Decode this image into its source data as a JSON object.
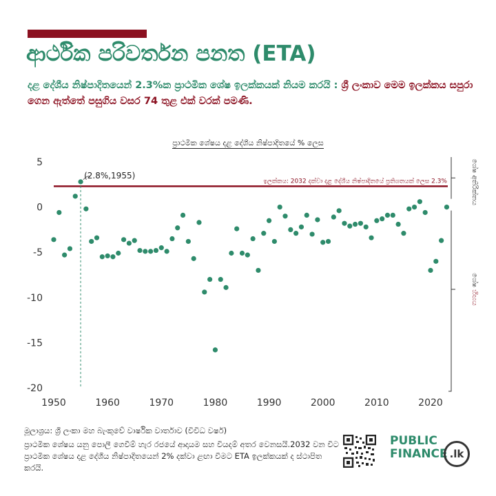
{
  "header": {
    "title": "ආර්ථික පරිවර්තන පනත (ETA)",
    "subtitle_green": "දළ දේශීය නිෂ්පාදිතයෙන් 2.3%ක ප්‍රාථමික ශේෂ ඉලක්කයක් නියම කරයි :",
    "subtitle_red": "ශ්‍රී ලංකාව මෙම ඉලක්කය සපුරා ගෙන ඇත්තේ පසුගිය වසර 74 තුළ එක් වරක් පමණි."
  },
  "colors": {
    "accent_red": "#8b1020",
    "accent_green": "#2e8b6b",
    "point": "#2e8b6b"
  },
  "chart_data": {
    "type": "scatter",
    "title": "ප්‍රාථමික ශේෂය දළ දේශීය නිෂ්පාදිතයේ % ලෙස",
    "xlim": [
      1949,
      2024
    ],
    "ylim": [
      -20,
      5
    ],
    "xticks": [
      1950,
      1960,
      1970,
      1980,
      1990,
      2000,
      2010,
      2020
    ],
    "yticks": [
      5,
      0,
      -5,
      -10,
      -15,
      -20
    ],
    "target": {
      "value": 2.3,
      "label": "ඉලක්කය: 2032 දක්වා දළ දේශීය නිෂ්පාදිතයේ ප්‍රතිශතයක් ලෙස 2.3%"
    },
    "highlight": {
      "x": 1955,
      "y": 2.8,
      "label": "(2.8%,1955)"
    },
    "right_labels": {
      "surplus": "ශේෂ අතිරික්තය",
      "deficit_a": "ශේෂ ",
      "deficit_b": "හිඟය"
    },
    "x": [
      1950,
      1951,
      1952,
      1953,
      1954,
      1955,
      1956,
      1957,
      1958,
      1959,
      1960,
      1961,
      1962,
      1963,
      1964,
      1965,
      1966,
      1967,
      1968,
      1969,
      1970,
      1971,
      1972,
      1973,
      1974,
      1975,
      1976,
      1977,
      1978,
      1979,
      1980,
      1981,
      1982,
      1983,
      1984,
      1985,
      1986,
      1987,
      1988,
      1989,
      1990,
      1991,
      1992,
      1993,
      1994,
      1995,
      1996,
      1997,
      1998,
      1999,
      2000,
      2001,
      2002,
      2003,
      2004,
      2005,
      2006,
      2007,
      2008,
      2009,
      2010,
      2011,
      2012,
      2013,
      2014,
      2015,
      2016,
      2017,
      2018,
      2019,
      2020,
      2021,
      2022,
      2023
    ],
    "y": [
      -3.6,
      -0.6,
      -5.3,
      -4.6,
      1.2,
      2.8,
      -0.2,
      -3.8,
      -3.4,
      -5.5,
      -5.4,
      -5.5,
      -5.1,
      -3.6,
      -4.0,
      -3.7,
      -4.8,
      -4.9,
      -4.9,
      -4.8,
      -4.5,
      -4.9,
      -3.5,
      -2.3,
      -0.9,
      -3.8,
      -5.7,
      -1.7,
      -9.4,
      -8.0,
      -15.8,
      -8.0,
      -8.9,
      -5.1,
      -2.4,
      -5.1,
      -5.3,
      -3.5,
      -7.0,
      -2.9,
      -1.5,
      -3.8,
      0.0,
      -1.0,
      -2.5,
      -2.9,
      -2.2,
      -0.9,
      -3.0,
      -1.4,
      -3.9,
      -3.8,
      -1.1,
      -0.4,
      -1.8,
      -2.1,
      -1.9,
      -1.8,
      -2.2,
      -3.4,
      -1.5,
      -1.3,
      -0.9,
      -0.9,
      -1.9,
      -2.9,
      -0.2,
      0.0,
      0.6,
      -0.6,
      -7.0,
      -6.0,
      -3.7,
      0.0
    ]
  },
  "footer": {
    "source": "මූලාශ්‍රය: ශ්‍රී ලංකා මහ බැංකුවේ වාර්ෂික වාර්තාව (විවිධ වර්ෂ)",
    "note": "ප්‍රාථමික ශේෂය යනු පොලී ගෙවීම් හැර රජයේ ආදායම සහ වියදම් අතර වෙනසයි.2032 වන විට ප්‍රාථමික ශේෂය දළ දේශීය නිෂ්පාදිතයෙන් 2% දක්වා ළඟා වීමට ETA ඉලක්කයක් ද ස්ථාපිත කරයි.",
    "brand_line1": "PUBLIC",
    "brand_line2": "FINANCE",
    "brand_badge": ".lk"
  }
}
